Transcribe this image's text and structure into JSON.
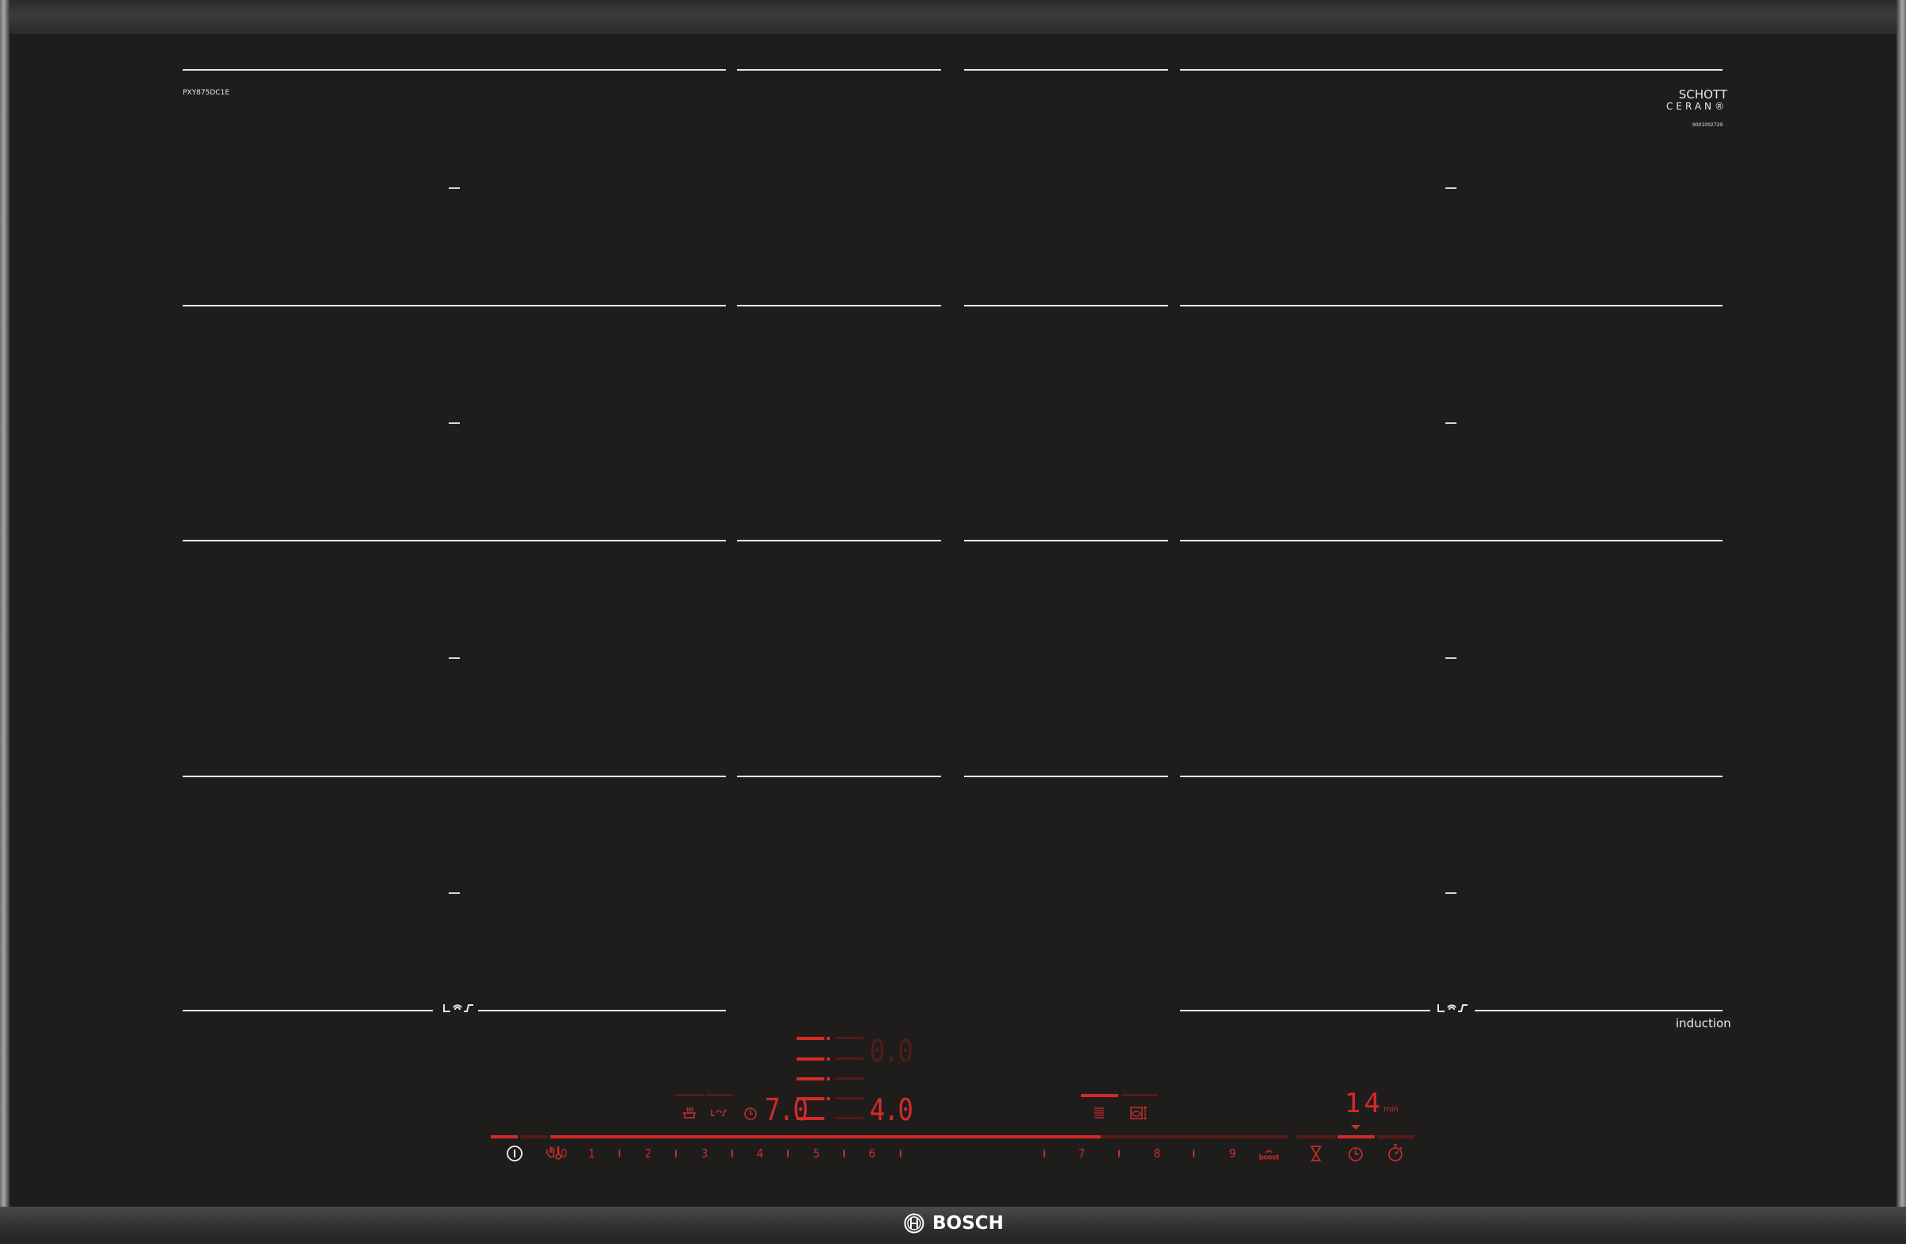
{
  "model": "PXY875DC1E",
  "glass_brand": {
    "line1": "SCHOTT",
    "line2": "CERAN®"
  },
  "serial": "9001002729",
  "induction_label": "induction",
  "brand": "BOSCH",
  "display": {
    "left_zone_value": "7.0",
    "level_upper_value": "0.0",
    "level_lower_value": "4.0",
    "timer_value": "14",
    "timer_unit": "min"
  },
  "slider": {
    "labels": [
      "0",
      "1",
      "2",
      "3",
      "4",
      "5",
      "6",
      "7",
      "8",
      "9"
    ],
    "boost_label": "boost"
  },
  "icons": [
    "power-icon",
    "hand-thermometer-icon",
    "steam-pot-icon",
    "flex-zone-icon",
    "clock-icon",
    "frying-levels-icon",
    "frying-sensor-icon",
    "boost-icon",
    "hourglass-icon",
    "timer-icon",
    "stopwatch-icon",
    "flexinduction-icon"
  ],
  "colors": {
    "glass": "#1e1d1c",
    "led_on": "#d42a2a",
    "led_off": "#551b19",
    "print": "#e8e8e8"
  }
}
